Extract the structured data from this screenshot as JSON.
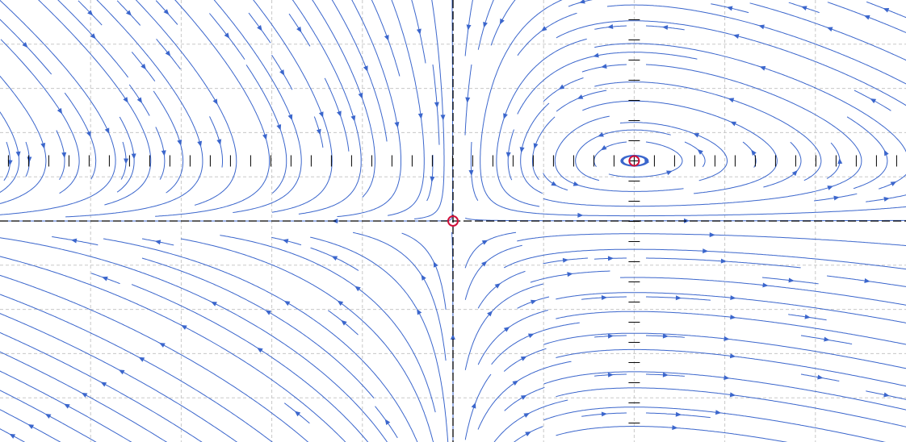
{
  "chart_data": {
    "type": "streamplot",
    "xlim": [
      -2.5,
      2.5
    ],
    "ylim": [
      -2.5,
      2.5
    ],
    "xticks": [
      -2,
      -1.5,
      -1,
      -0.5,
      0,
      0.5,
      1,
      1.5,
      2
    ],
    "yticks": [
      -2,
      -1.5,
      -1,
      -0.5,
      0,
      0.5,
      1,
      1.5,
      2
    ],
    "grid": true,
    "color": "#3b66cc",
    "fixed_points": {
      "x": [
        0,
        1
      ],
      "y": [
        0,
        0.68
      ],
      "color": "#d0103a"
    }
  }
}
